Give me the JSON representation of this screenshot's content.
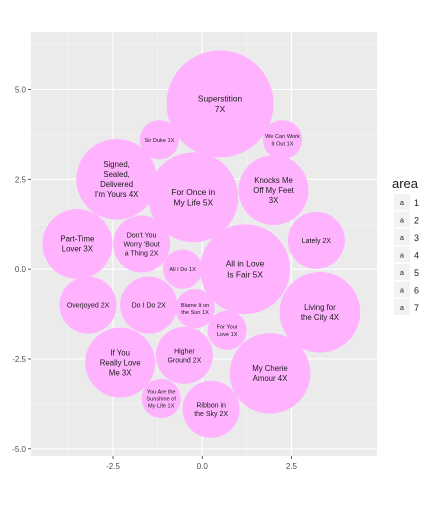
{
  "chart_data": {
    "type": "scatter",
    "subtype": "packed-circles",
    "title": "",
    "xlabel": "",
    "ylabel": "",
    "xlim": [
      -4.8,
      4.9
    ],
    "ylim": [
      -5.2,
      6.6
    ],
    "x_ticks": [
      -2.5,
      0.0,
      2.5
    ],
    "x_tick_labels": [
      "-2.5",
      "0.0",
      "2.5"
    ],
    "y_ticks": [
      -5.0,
      -2.5,
      0.0,
      2.5,
      5.0
    ],
    "y_tick_labels": [
      "-5.0",
      "-2.5",
      "0.0",
      "2.5",
      "5.0"
    ],
    "grid": true,
    "background_color": "#ebebeb",
    "bubble_fill": "#ffb3ff",
    "legend": {
      "title": "area",
      "position": "right",
      "glyph": "a",
      "entries": [
        "1",
        "2",
        "3",
        "4",
        "5",
        "6",
        "7"
      ]
    },
    "bubbles": [
      {
        "label": "Superstition\n7X",
        "x": 0.5,
        "y": 4.6,
        "r": 1.5,
        "area": 7
      },
      {
        "label": "Sir Duke 1X",
        "x": -1.2,
        "y": 3.6,
        "r": 0.55,
        "area": 1
      },
      {
        "label": "We Can Work\nIt Out 1X",
        "x": 2.25,
        "y": 3.6,
        "r": 0.55,
        "area": 1
      },
      {
        "label": "Signed,\nSealed,\nDelivered\nI'm Yours 4X",
        "x": -2.4,
        "y": 2.5,
        "r": 1.13,
        "area": 4
      },
      {
        "label": "For Once in\nMy Life 5X",
        "x": -0.25,
        "y": 2.0,
        "r": 1.26,
        "area": 5
      },
      {
        "label": "Knocks Me\nOff My Feet\n3X",
        "x": 2.0,
        "y": 2.2,
        "r": 0.98,
        "area": 3
      },
      {
        "label": "Part-Time\nLover 3X",
        "x": -3.5,
        "y": 0.7,
        "r": 0.98,
        "area": 3
      },
      {
        "label": "Don't You\nWorry 'Bout\na Thing 2X",
        "x": -1.7,
        "y": 0.7,
        "r": 0.8,
        "area": 2
      },
      {
        "label": "Lately 2X",
        "x": 3.2,
        "y": 0.8,
        "r": 0.8,
        "area": 2
      },
      {
        "label": "All I Do 1X",
        "x": -0.55,
        "y": 0.0,
        "r": 0.55,
        "area": 1
      },
      {
        "label": "All in Love\nIs Fair 5X",
        "x": 1.2,
        "y": 0.0,
        "r": 1.26,
        "area": 5
      },
      {
        "label": "Overjoyed 2X",
        "x": -3.2,
        "y": -1.0,
        "r": 0.8,
        "area": 2
      },
      {
        "label": "Do I Do 2X",
        "x": -1.5,
        "y": -1.0,
        "r": 0.8,
        "area": 2
      },
      {
        "label": "Blame It on\nthe Sun 1X",
        "x": -0.2,
        "y": -1.1,
        "r": 0.55,
        "area": 1
      },
      {
        "label": "Living for\nthe City 4X",
        "x": 3.3,
        "y": -1.2,
        "r": 1.13,
        "area": 4
      },
      {
        "label": "For Your\nLove 1X",
        "x": 0.7,
        "y": -1.7,
        "r": 0.55,
        "area": 1
      },
      {
        "label": "If You\nReally Love\nMe 3X",
        "x": -2.3,
        "y": -2.6,
        "r": 0.98,
        "area": 3
      },
      {
        "label": "Higher\nGround 2X",
        "x": -0.5,
        "y": -2.4,
        "r": 0.8,
        "area": 2
      },
      {
        "label": "My Cherie\nAmour 4X",
        "x": 1.9,
        "y": -2.9,
        "r": 1.13,
        "area": 4
      },
      {
        "label": "You Are the\nSunshine of\nMy Life 1X",
        "x": -1.15,
        "y": -3.6,
        "r": 0.55,
        "area": 1
      },
      {
        "label": "Ribbon in\nthe Sky 2X",
        "x": 0.25,
        "y": -3.9,
        "r": 0.8,
        "area": 2
      }
    ]
  }
}
